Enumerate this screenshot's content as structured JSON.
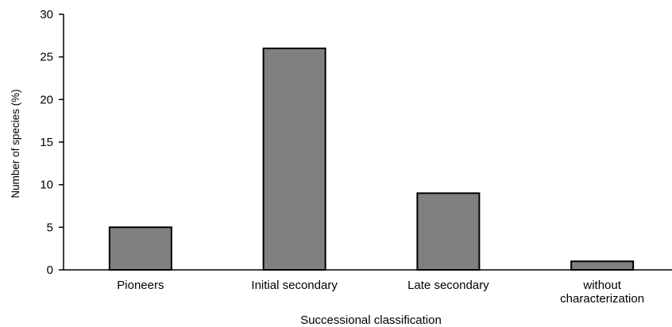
{
  "chart_data": {
    "type": "bar",
    "title": "",
    "xlabel": "Successional classification",
    "ylabel": "Number of species (%)",
    "categories": [
      "Pioneers",
      "Initial secondary",
      "Late secondary",
      "without characterization"
    ],
    "category_lines": [
      [
        "Pioneers"
      ],
      [
        "Initial secondary"
      ],
      [
        "Late secondary"
      ],
      [
        "without",
        "characterization"
      ]
    ],
    "values": [
      5,
      26,
      9,
      1
    ],
    "ylim": [
      0,
      30
    ],
    "yticks": [
      0,
      5,
      10,
      15,
      20,
      25,
      30
    ],
    "grid": false,
    "legend": "none",
    "bar_color": "#808080",
    "bar_edge_color": "#000000"
  }
}
